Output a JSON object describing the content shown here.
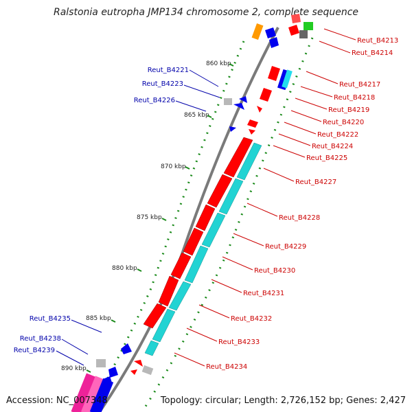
{
  "title": "Ralstonia eutropha JMP134 chromosome 2, complete sequence",
  "footer": {
    "accession": "Accession: NC_007348",
    "topology": "Topology: circular; Length: 2,726,152 bp; Genes: 2,427"
  },
  "colors": {
    "backbone": "#7a7a7a",
    "right_label": "#cc0000",
    "left_label": "#0000aa",
    "forward_gene": "#ff0000",
    "reverse_gene": "#0000ee",
    "cyan_track": "#22d3d3",
    "other_gene": "#b8b8b8",
    "tick": "#1a8a1a"
  },
  "scale": [
    {
      "label": "860 kbp"
    },
    {
      "label": "865 kbp"
    },
    {
      "label": "870 kbp"
    },
    {
      "label": "875 kbp"
    },
    {
      "label": "880 kbp"
    },
    {
      "label": "885 kbp"
    },
    {
      "label": "890 kbp"
    }
  ],
  "right_labels": [
    "Reut_B4213",
    "Reut_B4214",
    "Reut_B4217",
    "Reut_B4218",
    "Reut_B4219",
    "Reut_B4220",
    "Reut_B4222",
    "Reut_B4224",
    "Reut_B4225",
    "Reut_B4227",
    "Reut_B4228",
    "Reut_B4229",
    "Reut_B4230",
    "Reut_B4231",
    "Reut_B4232",
    "Reut_B4233",
    "Reut_B4234"
  ],
  "left_labels": [
    "Reut_B4221",
    "Reut_B4223",
    "Reut_B4226",
    "Reut_B4235",
    "Reut_B4238",
    "Reut_B4239"
  ]
}
